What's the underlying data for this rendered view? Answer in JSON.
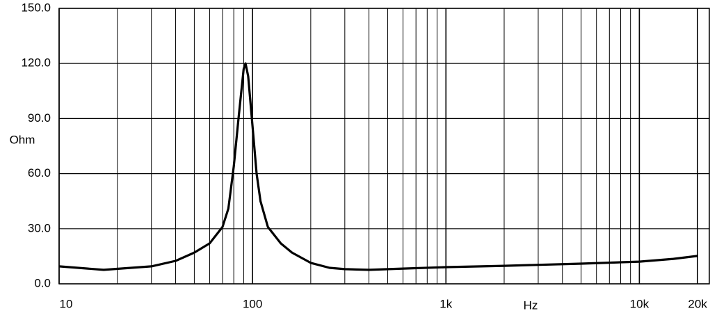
{
  "chart_data": {
    "type": "line",
    "x_label": "Hz",
    "y_label": "Ohm",
    "xscale": "log",
    "xlim": [
      10,
      23000
    ],
    "ylim": [
      0,
      150
    ],
    "xticks": [
      10,
      100,
      {
        "value": 1000,
        "label": "1k"
      },
      {
        "value": 10000,
        "label": "10k"
      },
      {
        "value": 20000,
        "label": "20k"
      }
    ],
    "yticks": [
      {
        "value": 0,
        "label": "0.0"
      },
      {
        "value": 30,
        "label": "30.0"
      },
      {
        "value": 60,
        "label": "60.0"
      },
      {
        "value": 90,
        "label": "90.0"
      },
      {
        "value": 120,
        "label": "120.0"
      },
      {
        "value": 150,
        "label": "150.0"
      }
    ],
    "x_minor_grid": [
      20,
      30,
      40,
      50,
      60,
      70,
      80,
      90,
      200,
      300,
      400,
      500,
      600,
      700,
      800,
      900,
      2000,
      3000,
      4000,
      5000,
      6000,
      7000,
      8000,
      9000
    ],
    "grid": true,
    "series": [
      {
        "color": "#000000",
        "x": [
          10,
          17,
          30,
          40,
          50,
          60,
          70,
          75,
          80,
          85,
          90,
          92,
          95,
          100,
          105,
          110,
          120,
          140,
          160,
          200,
          250,
          300,
          400,
          600,
          1000,
          2000,
          5000,
          10000,
          15000,
          20000
        ],
        "values": [
          9.5,
          7.6,
          9.5,
          12.5,
          17,
          22,
          31,
          41,
          64,
          92,
          117,
          120,
          113,
          86,
          60,
          45,
          31,
          22,
          17,
          11.4,
          8.7,
          8,
          7.6,
          8.3,
          9.1,
          9.8,
          11,
          12.1,
          13.6,
          15.2
        ]
      }
    ]
  }
}
